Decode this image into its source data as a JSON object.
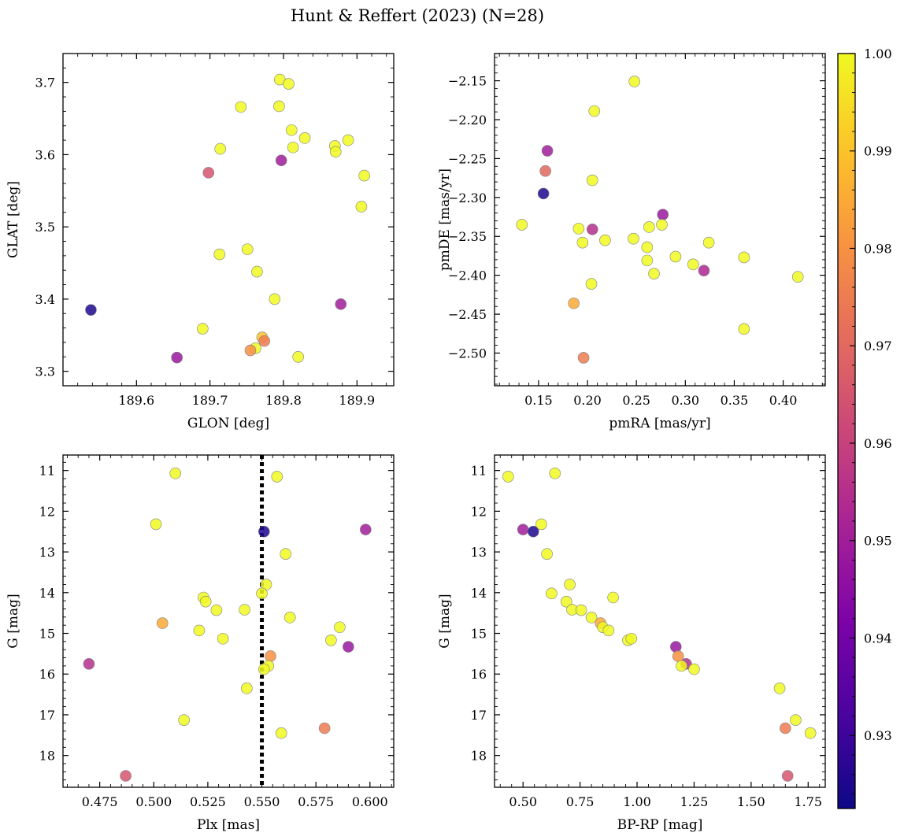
{
  "figure": {
    "title": "Hunt & Reffert (2023) (N=28)"
  },
  "colorbar": {
    "ticks": [
      "0.93",
      "0.94",
      "0.95",
      "0.96",
      "0.97",
      "0.98",
      "0.99",
      "1.00"
    ],
    "range": [
      0.9225,
      1.0
    ],
    "colormap": "plasma"
  },
  "chart_data": [
    {
      "type": "scatter",
      "panel": "top-left",
      "xlabel": "GLON [deg]",
      "ylabel": "GLAT [deg]",
      "xlim": [
        189.5,
        189.95
      ],
      "ylim": [
        3.28,
        3.74
      ],
      "xticks": [
        "189.6",
        "189.7",
        "189.8",
        "189.9"
      ],
      "yticks": [
        "3.3",
        "3.4",
        "3.5",
        "3.6",
        "3.7"
      ],
      "points": [
        {
          "x": 189.795,
          "y": 3.704,
          "p": 1.0
        },
        {
          "x": 189.807,
          "y": 3.698,
          "p": 1.0
        },
        {
          "x": 189.742,
          "y": 3.666,
          "p": 1.0
        },
        {
          "x": 189.794,
          "y": 3.667,
          "p": 1.0
        },
        {
          "x": 189.811,
          "y": 3.634,
          "p": 1.0
        },
        {
          "x": 189.829,
          "y": 3.623,
          "p": 1.0
        },
        {
          "x": 189.888,
          "y": 3.62,
          "p": 1.0
        },
        {
          "x": 189.87,
          "y": 3.612,
          "p": 1.0
        },
        {
          "x": 189.813,
          "y": 3.61,
          "p": 1.0
        },
        {
          "x": 189.714,
          "y": 3.608,
          "p": 1.0
        },
        {
          "x": 189.871,
          "y": 3.604,
          "p": 1.0
        },
        {
          "x": 189.797,
          "y": 3.592,
          "p": 0.95
        },
        {
          "x": 189.698,
          "y": 3.575,
          "p": 0.965
        },
        {
          "x": 189.91,
          "y": 3.571,
          "p": 1.0
        },
        {
          "x": 189.906,
          "y": 3.528,
          "p": 1.0
        },
        {
          "x": 189.751,
          "y": 3.469,
          "p": 1.0
        },
        {
          "x": 189.713,
          "y": 3.462,
          "p": 1.0
        },
        {
          "x": 189.764,
          "y": 3.438,
          "p": 1.0
        },
        {
          "x": 189.788,
          "y": 3.4,
          "p": 1.0
        },
        {
          "x": 189.878,
          "y": 3.393,
          "p": 0.95
        },
        {
          "x": 189.538,
          "y": 3.385,
          "p": 0.925
        },
        {
          "x": 189.69,
          "y": 3.359,
          "p": 1.0
        },
        {
          "x": 189.771,
          "y": 3.347,
          "p": 0.99
        },
        {
          "x": 189.774,
          "y": 3.342,
          "p": 0.975
        },
        {
          "x": 189.762,
          "y": 3.332,
          "p": 1.0
        },
        {
          "x": 189.755,
          "y": 3.329,
          "p": 0.98
        },
        {
          "x": 189.655,
          "y": 3.319,
          "p": 0.948
        },
        {
          "x": 189.82,
          "y": 3.32,
          "p": 1.0
        }
      ]
    },
    {
      "type": "scatter",
      "panel": "top-right",
      "xlabel": "pmRA [mas/yr]",
      "ylabel": "pmDE [mas/yr]",
      "xlim": [
        0.105,
        0.443
      ],
      "ylim": [
        -2.542,
        -2.115
      ],
      "xticks": [
        "0.15",
        "0.20",
        "0.25",
        "0.30",
        "0.35",
        "0.40"
      ],
      "yticks": [
        "−2.15",
        "−2.20",
        "−2.25",
        "−2.30",
        "−2.35",
        "−2.40",
        "−2.45",
        "−2.50"
      ],
      "points": [
        {
          "x": 0.248,
          "y": -2.151,
          "p": 1.0
        },
        {
          "x": 0.207,
          "y": -2.189,
          "p": 1.0
        },
        {
          "x": 0.159,
          "y": -2.24,
          "p": 0.95
        },
        {
          "x": 0.157,
          "y": -2.266,
          "p": 0.97
        },
        {
          "x": 0.205,
          "y": -2.278,
          "p": 1.0
        },
        {
          "x": 0.155,
          "y": -2.295,
          "p": 0.925
        },
        {
          "x": 0.277,
          "y": -2.322,
          "p": 0.948
        },
        {
          "x": 0.133,
          "y": -2.335,
          "p": 1.0
        },
        {
          "x": 0.276,
          "y": -2.335,
          "p": 1.0
        },
        {
          "x": 0.263,
          "y": -2.338,
          "p": 1.0
        },
        {
          "x": 0.191,
          "y": -2.34,
          "p": 1.0
        },
        {
          "x": 0.205,
          "y": -2.341,
          "p": 0.955
        },
        {
          "x": 0.247,
          "y": -2.353,
          "p": 1.0
        },
        {
          "x": 0.218,
          "y": -2.355,
          "p": 1.0
        },
        {
          "x": 0.324,
          "y": -2.358,
          "p": 1.0
        },
        {
          "x": 0.195,
          "y": -2.358,
          "p": 1.0
        },
        {
          "x": 0.261,
          "y": -2.364,
          "p": 1.0
        },
        {
          "x": 0.29,
          "y": -2.376,
          "p": 1.0
        },
        {
          "x": 0.36,
          "y": -2.377,
          "p": 1.0
        },
        {
          "x": 0.261,
          "y": -2.381,
          "p": 1.0
        },
        {
          "x": 0.308,
          "y": -2.386,
          "p": 1.0
        },
        {
          "x": 0.319,
          "y": -2.394,
          "p": 0.953
        },
        {
          "x": 0.268,
          "y": -2.398,
          "p": 1.0
        },
        {
          "x": 0.415,
          "y": -2.402,
          "p": 1.0
        },
        {
          "x": 0.204,
          "y": -2.411,
          "p": 1.0
        },
        {
          "x": 0.186,
          "y": -2.436,
          "p": 0.985
        },
        {
          "x": 0.36,
          "y": -2.469,
          "p": 1.0
        },
        {
          "x": 0.196,
          "y": -2.506,
          "p": 0.975
        }
      ]
    },
    {
      "type": "scatter",
      "panel": "bottom-left",
      "xlabel": "Plx [mas]",
      "ylabel": "G [mag]",
      "xlim": [
        0.458,
        0.611
      ],
      "ylim": [
        18.78,
        10.62
      ],
      "xticks": [
        "0.475",
        "0.500",
        "0.525",
        "0.550",
        "0.575",
        "0.600"
      ],
      "yticks": [
        "11",
        "12",
        "13",
        "14",
        "15",
        "16",
        "17",
        "18"
      ],
      "reference_line": {
        "x": 0.55,
        "style": "dotted"
      },
      "points": [
        {
          "x": 0.51,
          "y": 11.07,
          "p": 1.0
        },
        {
          "x": 0.557,
          "y": 11.15,
          "p": 1.0
        },
        {
          "x": 0.501,
          "y": 12.32,
          "p": 1.0
        },
        {
          "x": 0.598,
          "y": 12.45,
          "p": 0.95
        },
        {
          "x": 0.551,
          "y": 12.5,
          "p": 0.925
        },
        {
          "x": 0.561,
          "y": 13.05,
          "p": 1.0
        },
        {
          "x": 0.552,
          "y": 13.8,
          "p": 1.0
        },
        {
          "x": 0.55,
          "y": 14.02,
          "p": 1.0
        },
        {
          "x": 0.523,
          "y": 14.12,
          "p": 1.0
        },
        {
          "x": 0.524,
          "y": 14.22,
          "p": 1.0
        },
        {
          "x": 0.542,
          "y": 14.42,
          "p": 1.0
        },
        {
          "x": 0.529,
          "y": 14.43,
          "p": 1.0
        },
        {
          "x": 0.563,
          "y": 14.61,
          "p": 1.0
        },
        {
          "x": 0.504,
          "y": 14.75,
          "p": 0.985
        },
        {
          "x": 0.586,
          "y": 14.85,
          "p": 1.0
        },
        {
          "x": 0.521,
          "y": 14.93,
          "p": 1.0
        },
        {
          "x": 0.532,
          "y": 15.13,
          "p": 1.0
        },
        {
          "x": 0.582,
          "y": 15.17,
          "p": 1.0
        },
        {
          "x": 0.59,
          "y": 15.33,
          "p": 0.948
        },
        {
          "x": 0.554,
          "y": 15.56,
          "p": 0.98
        },
        {
          "x": 0.47,
          "y": 15.75,
          "p": 0.955
        },
        {
          "x": 0.553,
          "y": 15.8,
          "p": 1.0
        },
        {
          "x": 0.551,
          "y": 15.88,
          "p": 1.0
        },
        {
          "x": 0.543,
          "y": 16.35,
          "p": 1.0
        },
        {
          "x": 0.514,
          "y": 17.13,
          "p": 1.0
        },
        {
          "x": 0.579,
          "y": 17.33,
          "p": 0.975
        },
        {
          "x": 0.559,
          "y": 17.45,
          "p": 1.0
        },
        {
          "x": 0.487,
          "y": 18.5,
          "p": 0.965
        }
      ]
    },
    {
      "type": "scatter",
      "panel": "bottom-right",
      "xlabel": "BP-RP [mag]",
      "ylabel": "G [mag]",
      "xlim": [
        0.375,
        1.825
      ],
      "ylim": [
        18.78,
        10.62
      ],
      "xticks": [
        "0.50",
        "0.75",
        "1.00",
        "1.25",
        "1.50",
        "1.75"
      ],
      "yticks": [
        "11",
        "12",
        "13",
        "14",
        "15",
        "16",
        "17",
        "18"
      ],
      "points": [
        {
          "x": 0.435,
          "y": 11.15,
          "p": 1.0
        },
        {
          "x": 0.64,
          "y": 11.07,
          "p": 1.0
        },
        {
          "x": 0.58,
          "y": 12.32,
          "p": 1.0
        },
        {
          "x": 0.5,
          "y": 12.45,
          "p": 0.95
        },
        {
          "x": 0.545,
          "y": 12.5,
          "p": 0.925
        },
        {
          "x": 0.605,
          "y": 13.05,
          "p": 1.0
        },
        {
          "x": 0.705,
          "y": 13.8,
          "p": 1.0
        },
        {
          "x": 0.625,
          "y": 14.02,
          "p": 1.0
        },
        {
          "x": 0.895,
          "y": 14.12,
          "p": 1.0
        },
        {
          "x": 0.69,
          "y": 14.22,
          "p": 1.0
        },
        {
          "x": 0.715,
          "y": 14.42,
          "p": 1.0
        },
        {
          "x": 0.755,
          "y": 14.43,
          "p": 1.0
        },
        {
          "x": 0.8,
          "y": 14.61,
          "p": 1.0
        },
        {
          "x": 0.84,
          "y": 14.75,
          "p": 0.985
        },
        {
          "x": 0.85,
          "y": 14.85,
          "p": 1.0
        },
        {
          "x": 0.875,
          "y": 14.93,
          "p": 1.0
        },
        {
          "x": 0.96,
          "y": 15.17,
          "p": 1.0
        },
        {
          "x": 0.975,
          "y": 15.13,
          "p": 1.0
        },
        {
          "x": 1.17,
          "y": 15.33,
          "p": 0.948
        },
        {
          "x": 1.18,
          "y": 15.56,
          "p": 0.98
        },
        {
          "x": 1.215,
          "y": 15.75,
          "p": 0.955
        },
        {
          "x": 1.195,
          "y": 15.8,
          "p": 1.0
        },
        {
          "x": 1.25,
          "y": 15.88,
          "p": 1.0
        },
        {
          "x": 1.625,
          "y": 16.35,
          "p": 1.0
        },
        {
          "x": 1.695,
          "y": 17.13,
          "p": 1.0
        },
        {
          "x": 1.65,
          "y": 17.33,
          "p": 0.975
        },
        {
          "x": 1.76,
          "y": 17.45,
          "p": 1.0
        },
        {
          "x": 1.66,
          "y": 18.5,
          "p": 0.965
        }
      ]
    }
  ]
}
